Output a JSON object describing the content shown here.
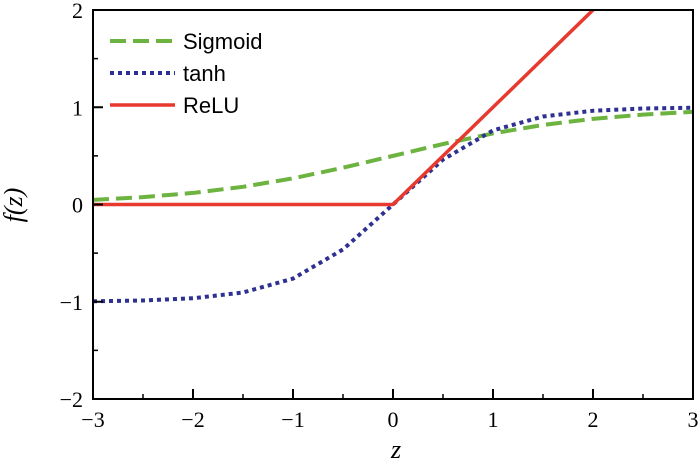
{
  "chart_data": {
    "type": "line",
    "title": "",
    "xlabel": "z",
    "ylabel": "f(z)",
    "xlim": [
      -3,
      3
    ],
    "ylim": [
      -2,
      2
    ],
    "xticks": [
      -3,
      -2,
      -1,
      0,
      1,
      2,
      3
    ],
    "xtick_labels": [
      "−3",
      "−2",
      "−1",
      "0",
      "1",
      "2",
      "3"
    ],
    "yticks": [
      -2,
      -1,
      0,
      1,
      2
    ],
    "ytick_labels": [
      "−2",
      "−1",
      "0",
      "1",
      "2"
    ],
    "grid": false,
    "legend_position": "top-left",
    "x": [
      -3,
      -2.5,
      -2,
      -1.5,
      -1,
      -0.5,
      0,
      0.5,
      1,
      1.5,
      2,
      2.5,
      3
    ],
    "series": [
      {
        "name": "Sigmoid",
        "style": "dashed",
        "color": "#6cb33f",
        "values": [
          0.047,
          0.076,
          0.119,
          0.182,
          0.269,
          0.378,
          0.5,
          0.622,
          0.731,
          0.818,
          0.881,
          0.924,
          0.953
        ]
      },
      {
        "name": "tanh",
        "style": "dotted",
        "color": "#2e3192",
        "values": [
          -0.995,
          -0.987,
          -0.964,
          -0.905,
          -0.762,
          -0.462,
          0,
          0.462,
          0.762,
          0.905,
          0.964,
          0.987,
          0.995
        ]
      },
      {
        "name": "ReLU",
        "style": "solid",
        "color": "#e8392f",
        "values": [
          0,
          0,
          0,
          0,
          0,
          0,
          0,
          0.5,
          1,
          1.5,
          2,
          2.5,
          3
        ]
      }
    ]
  }
}
